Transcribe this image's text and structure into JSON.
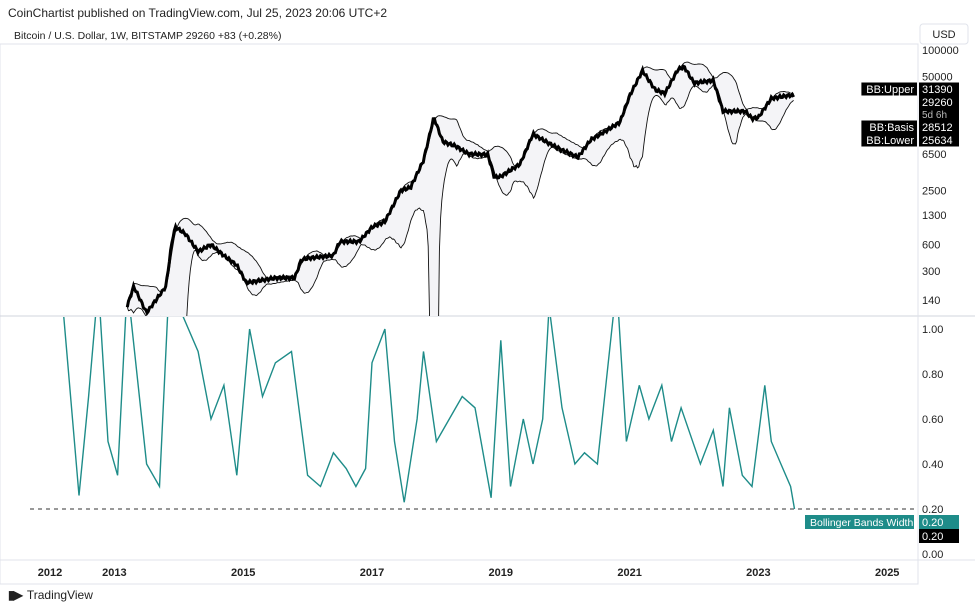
{
  "header": {
    "published": "CoinChartist published on TradingView.com, Jul 25, 2023 20:06 UTC+2",
    "symbol": "Bitcoin / U.S. Dollar, 1W, BITSTAMP  29260  +83 (+0.28%)"
  },
  "footer": {
    "logo_text": "TradingView",
    "logo_icon": "tradingview-logo-icon"
  },
  "chart_data": [
    {
      "type": "line",
      "pane": "price",
      "scale": "log",
      "currency": "USD",
      "yticks": [
        100000,
        50000,
        6500,
        2500,
        1300,
        600,
        300,
        140
      ],
      "ylim": [
        120,
        130000
      ],
      "price": [
        [
          2013.2,
          120
        ],
        [
          2013.3,
          200
        ],
        [
          2013.5,
          100
        ],
        [
          2013.8,
          200
        ],
        [
          2013.9,
          700
        ],
        [
          2013.95,
          950
        ],
        [
          2014.1,
          800
        ],
        [
          2014.3,
          500
        ],
        [
          2014.5,
          600
        ],
        [
          2014.7,
          450
        ],
        [
          2014.9,
          350
        ],
        [
          2015.05,
          220
        ],
        [
          2015.5,
          250
        ],
        [
          2015.8,
          250
        ],
        [
          2015.9,
          400
        ],
        [
          2016.0,
          420
        ],
        [
          2016.4,
          450
        ],
        [
          2016.5,
          650
        ],
        [
          2016.8,
          650
        ],
        [
          2017.0,
          950
        ],
        [
          2017.2,
          1100
        ],
        [
          2017.45,
          2500
        ],
        [
          2017.6,
          2700
        ],
        [
          2017.8,
          5500
        ],
        [
          2017.96,
          17000
        ],
        [
          2018.1,
          9000
        ],
        [
          2018.3,
          8000
        ],
        [
          2018.5,
          6500
        ],
        [
          2018.8,
          6400
        ],
        [
          2018.9,
          3500
        ],
        [
          2019.0,
          3600
        ],
        [
          2019.3,
          5000
        ],
        [
          2019.5,
          11000
        ],
        [
          2019.7,
          9000
        ],
        [
          2019.95,
          7200
        ],
        [
          2020.2,
          6000
        ],
        [
          2020.4,
          9500
        ],
        [
          2020.6,
          11500
        ],
        [
          2020.85,
          15000
        ],
        [
          2021.0,
          30000
        ],
        [
          2021.2,
          58000
        ],
        [
          2021.4,
          35000
        ],
        [
          2021.55,
          32000
        ],
        [
          2021.75,
          60000
        ],
        [
          2021.85,
          64000
        ],
        [
          2022.0,
          42000
        ],
        [
          2022.3,
          45000
        ],
        [
          2022.45,
          20000
        ],
        [
          2022.8,
          20000
        ],
        [
          2022.9,
          16500
        ],
        [
          2023.0,
          17000
        ],
        [
          2023.2,
          28000
        ],
        [
          2023.5,
          30500
        ],
        [
          2023.56,
          29260
        ]
      ],
      "labels": [
        {
          "name": "BB:Upper",
          "value": "31390"
        },
        {
          "name": "",
          "value": "29260",
          "sub": "5d 6h"
        },
        {
          "name": "BB:Basis",
          "value": "28512"
        },
        {
          "name": "BB:Lower",
          "value": "25634"
        }
      ]
    },
    {
      "type": "line",
      "pane": "indicator",
      "name": "Bollinger Bands Width",
      "color": "#1e8c89",
      "yticks": [
        1.0,
        0.8,
        0.6,
        0.4,
        0.2,
        0.0
      ],
      "ylim": [
        0,
        1.05
      ],
      "hline": 0.2,
      "current": "0.20",
      "values": [
        [
          2012.2,
          1.1
        ],
        [
          2012.35,
          0.6
        ],
        [
          2012.45,
          0.26
        ],
        [
          2012.6,
          0.7
        ],
        [
          2012.75,
          1.2
        ],
        [
          2012.9,
          0.5
        ],
        [
          2013.05,
          0.35
        ],
        [
          2013.2,
          1.2
        ],
        [
          2013.5,
          0.4
        ],
        [
          2013.7,
          0.3
        ],
        [
          2013.85,
          1.2
        ],
        [
          2014.3,
          0.9
        ],
        [
          2014.5,
          0.6
        ],
        [
          2014.7,
          0.75
        ],
        [
          2014.9,
          0.35
        ],
        [
          2015.1,
          1.0
        ],
        [
          2015.3,
          0.7
        ],
        [
          2015.5,
          0.85
        ],
        [
          2015.75,
          0.9
        ],
        [
          2016.0,
          0.35
        ],
        [
          2016.2,
          0.3
        ],
        [
          2016.4,
          0.45
        ],
        [
          2016.6,
          0.38
        ],
        [
          2016.75,
          0.3
        ],
        [
          2016.9,
          0.38
        ],
        [
          2017.0,
          0.85
        ],
        [
          2017.2,
          1.0
        ],
        [
          2017.35,
          0.5
        ],
        [
          2017.5,
          0.23
        ],
        [
          2017.7,
          0.6
        ],
        [
          2017.8,
          0.9
        ],
        [
          2018.0,
          0.5
        ],
        [
          2018.2,
          0.6
        ],
        [
          2018.4,
          0.7
        ],
        [
          2018.6,
          0.65
        ],
        [
          2018.85,
          0.25
        ],
        [
          2019.0,
          0.95
        ],
        [
          2019.15,
          0.3
        ],
        [
          2019.35,
          0.6
        ],
        [
          2019.5,
          0.4
        ],
        [
          2019.65,
          0.6
        ],
        [
          2019.75,
          1.1
        ],
        [
          2019.95,
          0.65
        ],
        [
          2020.15,
          0.4
        ],
        [
          2020.3,
          0.45
        ],
        [
          2020.5,
          0.4
        ],
        [
          2020.8,
          1.2
        ],
        [
          2020.95,
          0.5
        ],
        [
          2021.15,
          0.75
        ],
        [
          2021.3,
          0.6
        ],
        [
          2021.5,
          0.75
        ],
        [
          2021.65,
          0.5
        ],
        [
          2021.8,
          0.65
        ],
        [
          2022.1,
          0.4
        ],
        [
          2022.3,
          0.55
        ],
        [
          2022.45,
          0.3
        ],
        [
          2022.55,
          0.65
        ],
        [
          2022.75,
          0.35
        ],
        [
          2022.9,
          0.3
        ],
        [
          2023.1,
          0.75
        ],
        [
          2023.2,
          0.5
        ],
        [
          2023.35,
          0.4
        ],
        [
          2023.5,
          0.3
        ],
        [
          2023.56,
          0.2
        ]
      ]
    },
    {
      "xticks": [
        "2012",
        "2013",
        "2015",
        "2017",
        "2019",
        "2021",
        "2023",
        "2025"
      ]
    }
  ]
}
